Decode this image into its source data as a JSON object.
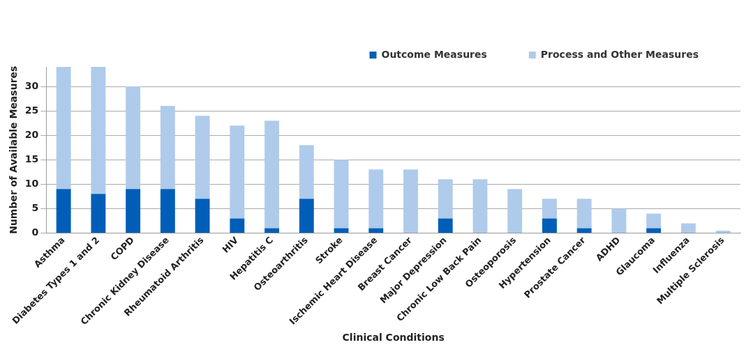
{
  "chart_data": {
    "type": "bar",
    "xlabel": "Clinical Conditions",
    "ylabel": "Number of Available Measures",
    "categories": [
      "Asthma",
      "Diabetes Types 1 and 2",
      "COPD",
      "Chronic Kidney Disease",
      "Rheumatoid Arthritis",
      "HIV",
      "Hepatitis C",
      "Osteoarthritis",
      "Stroke",
      "Ischemic Heart Disease",
      "Breast Cancer",
      "Major Depression",
      "Chronic Low Back Pain",
      "Osteoporosis",
      "Hypertension",
      "Prostate Cancer",
      "ADHD",
      "Glaucoma",
      "Influenza",
      "Multiple Sclerosis"
    ],
    "series": [
      {
        "name": "Outcome Measures",
        "color": "#005eb8",
        "values": [
          9,
          8,
          9,
          9,
          7,
          3,
          1,
          7,
          1,
          1,
          0,
          3,
          0,
          0,
          3,
          1,
          0,
          1,
          0,
          0
        ]
      },
      {
        "name": "Process and Other Measures",
        "color": "#afcbeb",
        "values": [
          25,
          26,
          21,
          17,
          17,
          19,
          22,
          11,
          14,
          12,
          13,
          8,
          11,
          9,
          4,
          6,
          5,
          3,
          2,
          0.5
        ]
      }
    ],
    "stacked": true,
    "ylim": [
      0,
      34
    ],
    "yticks": [
      0,
      5,
      10,
      15,
      20,
      25,
      30
    ],
    "grid": "y",
    "legend": "top right"
  }
}
